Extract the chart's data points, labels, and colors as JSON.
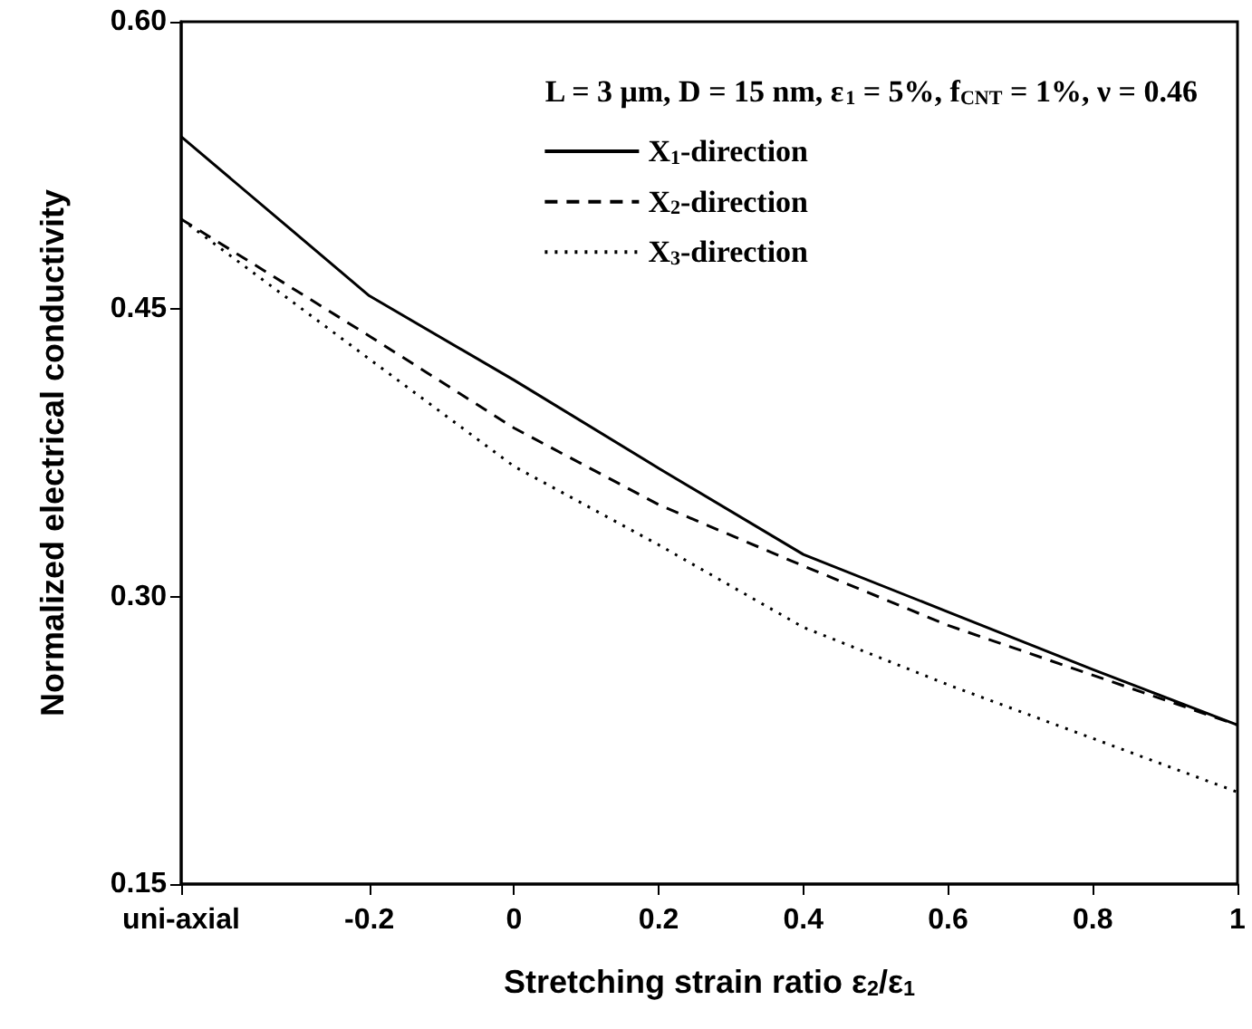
{
  "chart_data": {
    "type": "line",
    "xlabel": "Stretching strain ratio ε$_{2}$/ε$_{1}$",
    "ylabel": "Normalized electrical conductivity",
    "annotations": [
      "L = 3 μm, D = 15 nm, ε$_{1}$ = 5%, f$_{CNT}$ = 1%, ν = 0.46"
    ],
    "x": [
      -0.46,
      -0.2,
      0,
      0.2,
      0.4,
      0.6,
      0.8,
      1
    ],
    "series": [
      {
        "name": "X$_{1}$-direction",
        "color": "#000000",
        "line_style": "solid",
        "values": [
          0.54,
          0.457,
          0.413,
          0.367,
          0.322,
          0.292,
          0.262,
          0.233
        ]
      },
      {
        "name": "X$_{2}$-direction",
        "color": "#000000",
        "line_style": "dashed",
        "values": [
          0.497,
          0.436,
          0.388,
          0.348,
          0.316,
          0.285,
          0.259,
          0.233
        ]
      },
      {
        "name": "X$_{3}$-direction",
        "color": "#000000",
        "line_style": "dotted",
        "values": [
          0.497,
          0.424,
          0.368,
          0.327,
          0.284,
          0.254,
          0.226,
          0.198
        ]
      }
    ],
    "xlim": [
      -0.46,
      1
    ],
    "xticks": [
      {
        "value": -0.46,
        "label": "uni-axial"
      },
      -0.2,
      0,
      0.2,
      0.4,
      0.6,
      0.8,
      1
    ],
    "ylim": [
      0.15,
      0.6
    ],
    "yticks": [
      {
        "value": 0.15,
        "label": "0.15"
      },
      {
        "value": 0.3,
        "label": "0.30"
      },
      {
        "value": 0.45,
        "label": "0.45"
      },
      {
        "value": 0.6,
        "label": "0.60"
      }
    ],
    "grid": false,
    "legend": "top right",
    "marker": "none"
  }
}
